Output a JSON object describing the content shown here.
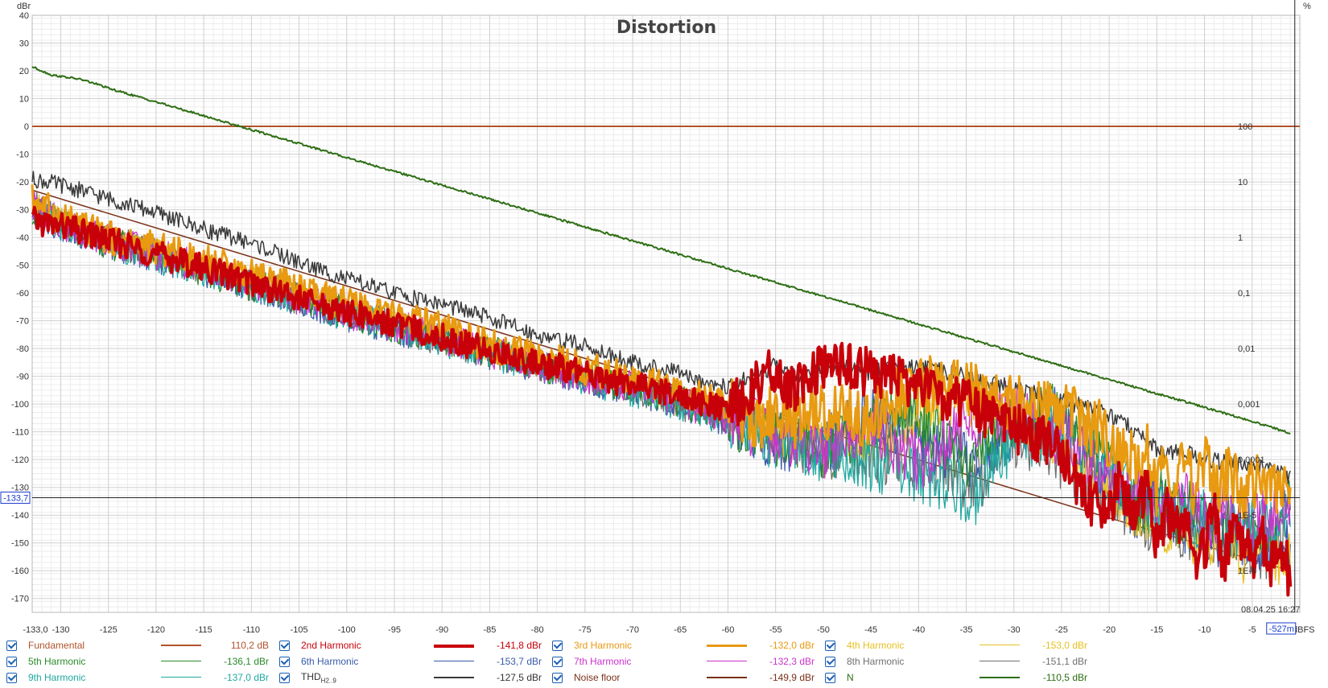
{
  "chart_data": {
    "type": "line",
    "title": "Distortion",
    "y_left_unit": "dBr",
    "y_right_unit": "%",
    "x_unit": "dBFS",
    "xlim": [
      -133,
      0
    ],
    "ylim": [
      -175,
      40
    ],
    "x_first_tick_label": "-133,0",
    "x_ticks": [
      -130,
      -125,
      -120,
      -115,
      -110,
      -105,
      -100,
      -95,
      -90,
      -85,
      -80,
      -75,
      -70,
      -65,
      -60,
      -55,
      -50,
      -45,
      -40,
      -35,
      -30,
      -25,
      -20,
      -15,
      -10,
      -5
    ],
    "y_ticks": [
      40,
      30,
      20,
      10,
      0,
      -10,
      -20,
      -30,
      -40,
      -50,
      -60,
      -70,
      -80,
      -90,
      -100,
      -110,
      -120,
      -130,
      -140,
      -150,
      -160,
      -170
    ],
    "y_right_ticks": [
      {
        "label": "100",
        "dbr": 0
      },
      {
        "label": "10",
        "dbr": -20
      },
      {
        "label": "1",
        "dbr": -40
      },
      {
        "label": "0,1",
        "dbr": -60
      },
      {
        "label": "0,01",
        "dbr": -80
      },
      {
        "label": "0,001",
        "dbr": -100
      },
      {
        "label": "0,0001",
        "dbr": -120
      },
      {
        "label": "1E-5",
        "dbr": -140
      },
      {
        "label": "1E-6",
        "dbr": -160
      }
    ],
    "grid": true,
    "cursor": {
      "y_label": "-133,7",
      "y": -133.7,
      "x_label": "-527m",
      "x": -0.527
    },
    "timestamp": "08.04.25 16:27",
    "series": [
      {
        "name": "Fundamental",
        "value": "110,2 dB",
        "color": "#b0532a",
        "width": 2,
        "x": [
          -133,
          0
        ],
        "y": [
          0,
          0
        ]
      },
      {
        "name": "2nd Harmonic",
        "value": "-141,8 dBr",
        "color": "#c8000a",
        "width": 4,
        "x": [
          -133,
          -130,
          -125,
          -120,
          -115,
          -110,
          -105,
          -100,
          -95,
          -90,
          -85,
          -80,
          -75,
          -70,
          -65,
          -60,
          -58,
          -56,
          -55,
          -53,
          -51,
          -49,
          -47,
          -45,
          -43,
          -41,
          -39,
          -37,
          -35,
          -33,
          -31,
          -29,
          -27,
          -25,
          -24,
          -23,
          -22,
          -21,
          -20,
          -19,
          -18,
          -17,
          -16,
          -15,
          -14,
          -13,
          -12,
          -11,
          -10,
          -9,
          -8,
          -7,
          -6,
          -5,
          -4,
          -3,
          -2,
          -1
        ],
        "y": [
          -34,
          -36,
          -41,
          -46,
          -51,
          -56,
          -62,
          -67,
          -71,
          -76,
          -81,
          -85,
          -89,
          -93,
          -97,
          -103,
          -96,
          -89,
          -91,
          -96,
          -89,
          -87,
          -87,
          -89,
          -91,
          -93,
          -94,
          -99,
          -100,
          -104,
          -107,
          -110,
          -113,
          -118,
          -125,
          -130,
          -135,
          -137,
          -141,
          -125,
          -135,
          -140,
          -128,
          -150,
          -138,
          -145,
          -143,
          -155,
          -152,
          -140,
          -157,
          -148,
          -150,
          -155,
          -147,
          -158,
          -150,
          -163
        ]
      },
      {
        "name": "3rd Harmonic",
        "value": "-132,0 dBr",
        "color": "#e89a10",
        "width": 3,
        "x": [
          -133,
          -130,
          -125,
          -120,
          -115,
          -110,
          -105,
          -100,
          -95,
          -90,
          -85,
          -80,
          -75,
          -70,
          -65,
          -60,
          -57,
          -55,
          -53,
          -51,
          -49,
          -47,
          -45,
          -43,
          -41,
          -39,
          -37,
          -35,
          -33,
          -31,
          -29,
          -27,
          -25,
          -24,
          -23,
          -22,
          -21,
          -20,
          -19,
          -18,
          -17,
          -16,
          -15,
          -14,
          -13,
          -12,
          -11,
          -10,
          -9,
          -8,
          -7,
          -6,
          -5,
          -4,
          -3,
          -2,
          -1
        ],
        "y": [
          -26,
          -33,
          -40,
          -44,
          -48,
          -53,
          -59,
          -64,
          -68,
          -73,
          -79,
          -83,
          -87,
          -91,
          -96,
          -100,
          -108,
          -102,
          -106,
          -101,
          -104,
          -103,
          -106,
          -98,
          -95,
          -93,
          -92,
          -94,
          -96,
          -98,
          -100,
          -102,
          -104,
          -102,
          -105,
          -110,
          -107,
          -115,
          -120,
          -118,
          -125,
          -118,
          -130,
          -120,
          -125,
          -118,
          -135,
          -120,
          -130,
          -128,
          -125,
          -132,
          -127,
          -130,
          -128,
          -132,
          -133
        ]
      },
      {
        "name": "4th Harmonic",
        "value": "-153,0 dBr",
        "color": "#e8c020",
        "width": 1.3,
        "x": [
          -133,
          -130,
          -125,
          -120,
          -115,
          -110,
          -105,
          -100,
          -95,
          -90,
          -85,
          -80,
          -75,
          -70,
          -65,
          -60,
          -55,
          -50,
          -45,
          -42,
          -40,
          -38,
          -36,
          -34,
          -32,
          -30,
          -28,
          -26,
          -24,
          -22,
          -20,
          -18,
          -16,
          -14,
          -12,
          -10,
          -8,
          -6,
          -4,
          -2,
          -1
        ],
        "y": [
          -28,
          -34,
          -40,
          -45,
          -50,
          -55,
          -61,
          -66,
          -71,
          -75,
          -80,
          -85,
          -89,
          -93,
          -98,
          -104,
          -110,
          -113,
          -112,
          -107,
          -103,
          -101,
          -100,
          -101,
          -103,
          -105,
          -109,
          -114,
          -118,
          -124,
          -132,
          -138,
          -140,
          -145,
          -150,
          -152,
          -148,
          -156,
          -150,
          -158,
          -153
        ]
      },
      {
        "name": "5th Harmonic",
        "value": "-136,1 dBr",
        "color": "#2a8a2a",
        "width": 1.3,
        "x": [
          -133,
          -130,
          -125,
          -120,
          -115,
          -110,
          -105,
          -100,
          -95,
          -90,
          -85,
          -80,
          -75,
          -70,
          -65,
          -60,
          -55,
          -50,
          -47,
          -45,
          -43,
          -41,
          -39,
          -37,
          -35,
          -33,
          -31,
          -29,
          -27,
          -25,
          -23,
          -21,
          -19,
          -17,
          -15,
          -13,
          -11,
          -9,
          -7,
          -5,
          -3,
          -1
        ],
        "y": [
          -30,
          -35,
          -42,
          -46,
          -52,
          -57,
          -62,
          -67,
          -72,
          -76,
          -81,
          -86,
          -90,
          -94,
          -99,
          -106,
          -112,
          -117,
          -113,
          -108,
          -105,
          -104,
          -108,
          -115,
          -120,
          -116,
          -108,
          -104,
          -102,
          -105,
          -110,
          -118,
          -125,
          -138,
          -132,
          -142,
          -137,
          -145,
          -140,
          -148,
          -143,
          -136
        ]
      },
      {
        "name": "6th Harmonic",
        "value": "-153,7 dBr",
        "color": "#3a5aaa",
        "width": 1.3,
        "x": [
          -133,
          -130,
          -125,
          -120,
          -115,
          -110,
          -105,
          -100,
          -95,
          -90,
          -85,
          -80,
          -75,
          -70,
          -65,
          -60,
          -55,
          -50,
          -45,
          -43,
          -41,
          -39,
          -37,
          -35,
          -33,
          -31,
          -29,
          -27,
          -25,
          -23,
          -21,
          -19,
          -17,
          -15,
          -13,
          -11,
          -9,
          -7,
          -5,
          -3,
          -1
        ],
        "y": [
          -30,
          -36,
          -42,
          -47,
          -52,
          -57,
          -63,
          -68,
          -73,
          -77,
          -82,
          -87,
          -91,
          -95,
          -100,
          -106,
          -113,
          -115,
          -102,
          -106,
          -110,
          -115,
          -118,
          -121,
          -119,
          -112,
          -106,
          -102,
          -105,
          -114,
          -125,
          -130,
          -140,
          -135,
          -145,
          -142,
          -150,
          -146,
          -155,
          -150,
          -153
        ]
      },
      {
        "name": "7th Harmonic",
        "value": "-132,3 dBr",
        "color": "#cc33cc",
        "width": 1.3,
        "x": [
          -133,
          -130,
          -125,
          -120,
          -115,
          -110,
          -105,
          -100,
          -95,
          -90,
          -85,
          -80,
          -75,
          -70,
          -65,
          -60,
          -55,
          -52,
          -50,
          -48,
          -46,
          -44,
          -42,
          -40,
          -38,
          -36,
          -34,
          -32,
          -30,
          -28,
          -26,
          -24,
          -22,
          -20,
          -18,
          -16,
          -14,
          -12,
          -10,
          -8,
          -6,
          -4,
          -2,
          -1
        ],
        "y": [
          -28,
          -35,
          -41,
          -46,
          -51,
          -56,
          -62,
          -67,
          -72,
          -76,
          -81,
          -86,
          -90,
          -94,
          -99,
          -105,
          -111,
          -113,
          -117,
          -112,
          -107,
          -110,
          -116,
          -121,
          -116,
          -110,
          -106,
          -103,
          -102,
          -105,
          -110,
          -115,
          -120,
          -126,
          -130,
          -133,
          -138,
          -135,
          -142,
          -138,
          -145,
          -140,
          -137,
          -132
        ]
      },
      {
        "name": "8th Harmonic",
        "value": "-151,1 dBr",
        "color": "#707070",
        "width": 1.3,
        "x": [
          -133,
          -130,
          -125,
          -120,
          -115,
          -110,
          -105,
          -100,
          -95,
          -90,
          -85,
          -80,
          -75,
          -70,
          -65,
          -60,
          -55,
          -50,
          -45,
          -40,
          -37,
          -35,
          -33,
          -32,
          -31,
          -30,
          -29,
          -28,
          -26,
          -24,
          -22,
          -20,
          -18,
          -16,
          -14,
          -12,
          -10,
          -8,
          -6,
          -4,
          -2,
          -1
        ],
        "y": [
          -28,
          -35,
          -41,
          -46,
          -51,
          -57,
          -62,
          -67,
          -72,
          -77,
          -81,
          -86,
          -90,
          -95,
          -100,
          -105,
          -112,
          -116,
          -118,
          -120,
          -123,
          -128,
          -126,
          -118,
          -115,
          -113,
          -112,
          -114,
          -118,
          -122,
          -127,
          -132,
          -138,
          -143,
          -140,
          -148,
          -145,
          -152,
          -148,
          -155,
          -150,
          -151
        ]
      },
      {
        "name": "9th Harmonic",
        "value": "-137,0 dBr",
        "color": "#20a8a0",
        "width": 1.3,
        "x": [
          -133,
          -130,
          -125,
          -120,
          -115,
          -110,
          -105,
          -100,
          -95,
          -90,
          -85,
          -80,
          -75,
          -70,
          -65,
          -60,
          -55,
          -50,
          -45,
          -42,
          -40,
          -38,
          -36,
          -35,
          -34,
          -33,
          -31,
          -29,
          -27,
          -25,
          -23,
          -21,
          -19,
          -17,
          -15,
          -13,
          -11,
          -9,
          -7,
          -5,
          -3,
          -1
        ],
        "y": [
          -29,
          -36,
          -42,
          -47,
          -52,
          -57,
          -63,
          -68,
          -72,
          -77,
          -82,
          -86,
          -91,
          -95,
          -100,
          -106,
          -113,
          -118,
          -121,
          -124,
          -126,
          -128,
          -130,
          -132,
          -134,
          -124,
          -118,
          -114,
          -110,
          -112,
          -116,
          -122,
          -128,
          -134,
          -140,
          -137,
          -143,
          -140,
          -146,
          -142,
          -139,
          -137
        ]
      },
      {
        "name": "THDH2..9",
        "value": "-127,5 dBr",
        "color": "#3a3a3a",
        "width": 1.5,
        "x": [
          -133,
          -130,
          -125,
          -120,
          -115,
          -110,
          -105,
          -100,
          -95,
          -90,
          -85,
          -80,
          -75,
          -70,
          -65,
          -60,
          -58,
          -56,
          -55,
          -54,
          -52,
          -50,
          -48,
          -46,
          -44,
          -42,
          -40,
          -38,
          -36,
          -34,
          -32,
          -30,
          -28,
          -26,
          -24,
          -22,
          -20,
          -18,
          -16,
          -14,
          -12,
          -10,
          -8,
          -6,
          -4,
          -2,
          -1
        ],
        "y": [
          -19,
          -21,
          -26,
          -31,
          -37,
          -42,
          -49,
          -55,
          -60,
          -64,
          -69,
          -75,
          -79,
          -85,
          -89,
          -94,
          -91,
          -88,
          -86,
          -89,
          -89,
          -87,
          -86,
          -89,
          -88,
          -87,
          -87,
          -88,
          -89,
          -92,
          -93,
          -94,
          -96,
          -98,
          -100,
          -101,
          -104,
          -108,
          -114,
          -118,
          -117,
          -120,
          -121,
          -122,
          -123,
          -125,
          -127
        ]
      },
      {
        "name": "Noise floor",
        "value": "-149,9 dBr",
        "color": "#7a3018",
        "width": 1.5,
        "x": [
          -133,
          -20,
          -10,
          -1
        ],
        "y": [
          -23,
          -141,
          -151,
          -160
        ]
      },
      {
        "name": "N",
        "value": "-110,5 dBr",
        "color": "#2e6e14",
        "width": 2,
        "x": [
          -133,
          -132,
          -131,
          -130,
          -128,
          -126,
          -125,
          -120,
          -115,
          -110,
          -105,
          -100,
          -95,
          -90,
          -85,
          -80,
          -75,
          -70,
          -65,
          -60,
          -55,
          -50,
          -45,
          -40,
          -35,
          -30,
          -25,
          -20,
          -15,
          -10,
          -5,
          -1
        ],
        "y": [
          21.5,
          20,
          18.5,
          18,
          17,
          15,
          13.7,
          8.8,
          3.8,
          -1.2,
          -6.2,
          -11.2,
          -16.2,
          -21.2,
          -26.2,
          -31.2,
          -36.2,
          -41.2,
          -46.2,
          -51.2,
          -56.2,
          -61.2,
          -66.2,
          -71.2,
          -76.2,
          -81.2,
          -86.2,
          -91.2,
          -96.2,
          -101.2,
          -106.2,
          -110.5
        ]
      }
    ]
  }
}
